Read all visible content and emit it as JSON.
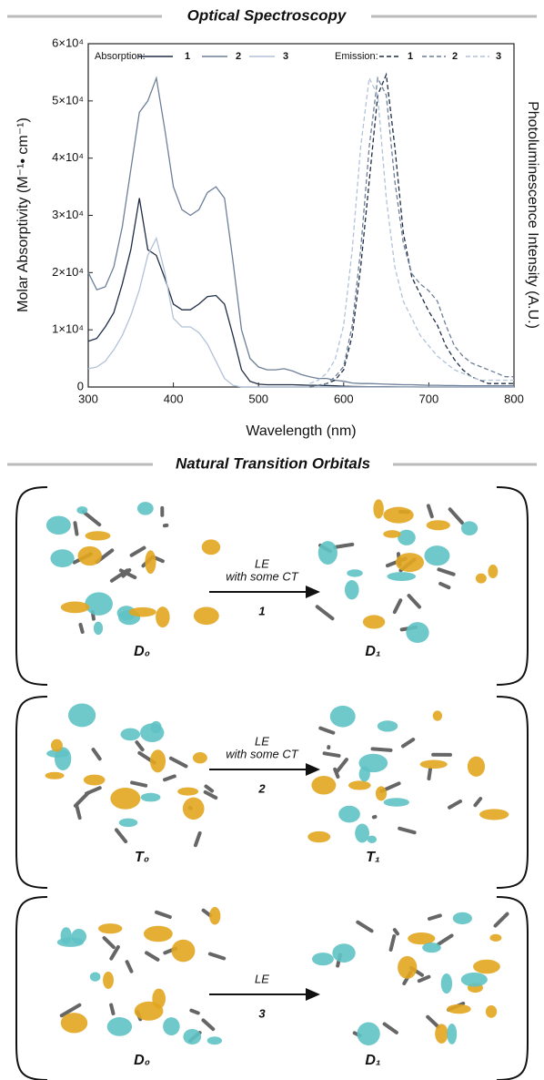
{
  "chart_data": {
    "type": "line",
    "title": "Optical Spectroscopy",
    "x_label": "Wavelength (nm)",
    "y_label": "Molar Absorptivity (M⁻¹• cm⁻¹)",
    "y2_label": "Photoluminescence Intensity (A.U.)",
    "legend_titles": {
      "solid": "Absorption:",
      "dashed": "Emission:"
    },
    "xlim": [
      300,
      800
    ],
    "xticks": [
      300,
      400,
      500,
      600,
      700,
      800
    ],
    "ylim": [
      0,
      60000
    ],
    "yticks": [
      0,
      {
        "value": 10000,
        "label": "1×10⁴"
      },
      {
        "value": 20000,
        "label": "2×10⁴"
      },
      {
        "value": 30000,
        "label": "3×10⁴"
      },
      {
        "value": 40000,
        "label": "4×10⁴"
      },
      {
        "value": 50000,
        "label": "5×10⁴"
      },
      {
        "value": 60000,
        "label": "6×10⁴"
      }
    ],
    "y2lim": [
      0,
      1
    ],
    "x": [
      300,
      310,
      320,
      330,
      340,
      350,
      360,
      370,
      380,
      390,
      400,
      410,
      420,
      430,
      440,
      450,
      460,
      470,
      480,
      490,
      500,
      510,
      520,
      530,
      540,
      550,
      560,
      570,
      580,
      590,
      600,
      610,
      620,
      630,
      640,
      650,
      660,
      670,
      680,
      690,
      700,
      710,
      720,
      730,
      740,
      750,
      760,
      770,
      780,
      790,
      800
    ],
    "series": [
      {
        "name": "1",
        "style": "solid",
        "color": "#1f2d45",
        "values": [
          8000,
          8500,
          10500,
          13000,
          18000,
          24000,
          33000,
          24000,
          23000,
          19000,
          14500,
          13500,
          13500,
          14500,
          15800,
          16000,
          14500,
          9000,
          3000,
          1000,
          500,
          400,
          400,
          400,
          400,
          350,
          300,
          300,
          250,
          200,
          150,
          100,
          80,
          60,
          50,
          40,
          30,
          20,
          10,
          0,
          0,
          0,
          0,
          0,
          0,
          0,
          0,
          0,
          0,
          0,
          0
        ]
      },
      {
        "name": "2",
        "style": "solid",
        "color": "#6d7f98",
        "values": [
          20000,
          17000,
          17500,
          21000,
          28000,
          38000,
          48000,
          50000,
          54000,
          45000,
          35000,
          31000,
          30000,
          31000,
          34000,
          35000,
          33000,
          22000,
          10000,
          5000,
          3500,
          3000,
          3000,
          3200,
          2800,
          2200,
          1800,
          1500,
          1500,
          1200,
          1000,
          700,
          600,
          600,
          550,
          500,
          450,
          400,
          400,
          350,
          300,
          300,
          250,
          250,
          200,
          200,
          200,
          200,
          200,
          200,
          200
        ]
      },
      {
        "name": "3",
        "style": "solid",
        "color": "#b2c2d8",
        "values": [
          3200,
          3500,
          4500,
          6500,
          9000,
          12500,
          17000,
          23000,
          26000,
          20000,
          12000,
          10500,
          10500,
          9500,
          7500,
          4500,
          1500,
          300,
          0,
          0,
          0,
          0,
          0,
          0,
          0,
          0,
          0,
          0,
          0,
          0,
          0,
          0,
          0,
          0,
          0,
          0,
          0,
          0,
          0,
          0,
          0,
          0,
          0,
          0,
          0,
          0,
          0,
          0,
          0,
          0,
          0
        ]
      },
      {
        "name": "1",
        "style": "dashed",
        "axis": "y2",
        "color": "#1f2d45",
        "values": [
          null,
          null,
          null,
          null,
          null,
          null,
          null,
          null,
          null,
          null,
          null,
          null,
          null,
          null,
          null,
          null,
          null,
          null,
          null,
          null,
          null,
          null,
          null,
          null,
          null,
          null,
          0,
          0.005,
          0.01,
          0.02,
          0.05,
          0.15,
          0.35,
          0.6,
          0.85,
          0.91,
          0.7,
          0.45,
          0.32,
          0.27,
          0.22,
          0.18,
          0.12,
          0.08,
          0.05,
          0.03,
          0.02,
          0.01,
          0.01,
          0.01,
          0.01
        ]
      },
      {
        "name": "2",
        "style": "dashed",
        "axis": "y2",
        "color": "#6d7f98",
        "values": [
          null,
          null,
          null,
          null,
          null,
          null,
          null,
          null,
          null,
          null,
          null,
          null,
          null,
          null,
          null,
          null,
          null,
          null,
          null,
          null,
          null,
          null,
          null,
          null,
          null,
          null,
          0,
          0.005,
          0.01,
          0.03,
          0.06,
          0.18,
          0.4,
          0.7,
          0.9,
          0.85,
          0.6,
          0.42,
          0.33,
          0.3,
          0.28,
          0.25,
          0.18,
          0.12,
          0.09,
          0.07,
          0.06,
          0.05,
          0.04,
          0.03,
          0.03
        ]
      },
      {
        "name": "3",
        "style": "dashed",
        "axis": "y2",
        "color": "#b2c2d8",
        "values": [
          null,
          null,
          null,
          null,
          null,
          null,
          null,
          null,
          null,
          null,
          null,
          null,
          null,
          null,
          null,
          null,
          null,
          null,
          null,
          null,
          null,
          null,
          null,
          null,
          null,
          null,
          0.01,
          0.02,
          0.04,
          0.08,
          0.18,
          0.4,
          0.7,
          0.9,
          0.85,
          0.55,
          0.35,
          0.25,
          0.2,
          0.15,
          0.12,
          0.09,
          0.07,
          0.05,
          0.04,
          0.03,
          0.02,
          0.02,
          0.02,
          0.02,
          0.02
        ]
      }
    ]
  },
  "nto": {
    "title": "Natural Transition Orbitals",
    "panels": [
      {
        "arrow_label": [
          "LE",
          "with some CT"
        ],
        "compound": "1",
        "left": "D₀",
        "right": "D₁"
      },
      {
        "arrow_label": [
          "LE",
          "with some CT"
        ],
        "compound": "2",
        "left": "T₀",
        "right": "T₁"
      },
      {
        "arrow_label": [
          "LE"
        ],
        "compound": "3",
        "left": "D₀",
        "right": "D₁"
      }
    ]
  }
}
